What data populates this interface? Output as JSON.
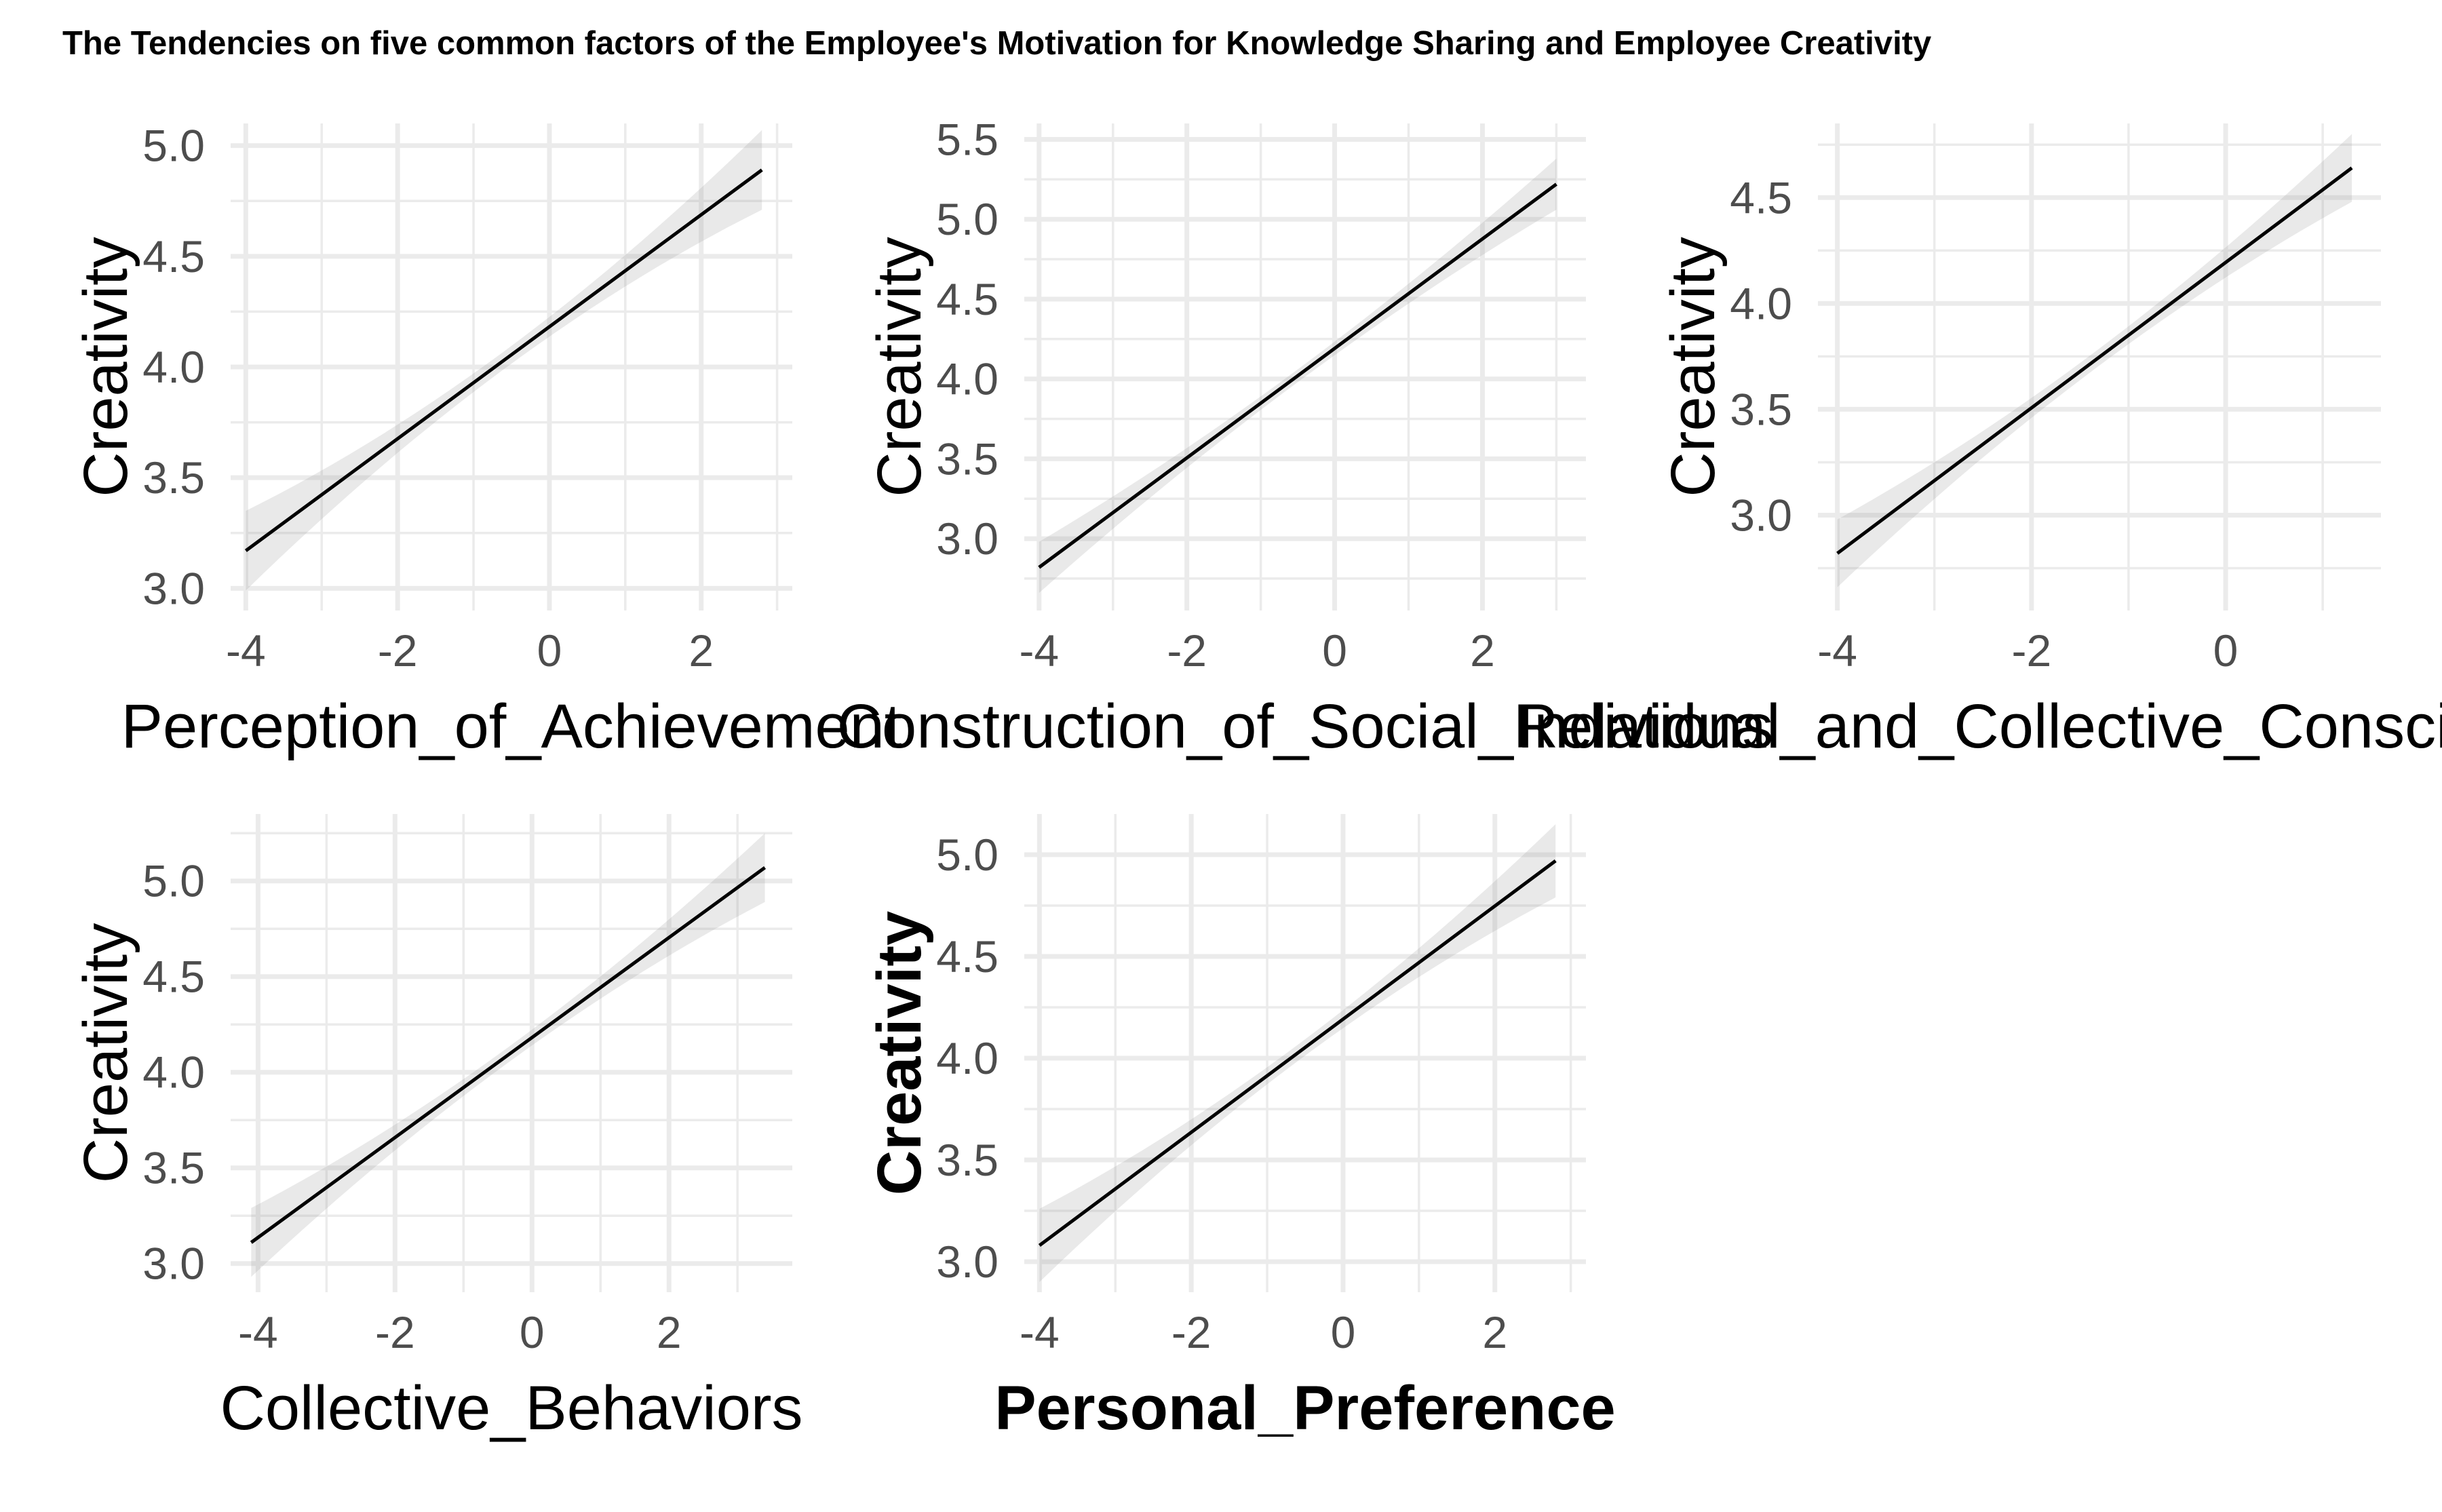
{
  "chart_data": {
    "title": "The Tendencies on five common factors of the Employee's Motivation for Knowledge Sharing and Employee Creativity",
    "panels": [
      {
        "type": "line",
        "xlabel": "Perception_of_Achievement",
        "ylabel": "Creativity",
        "xlim": [
          -4.2,
          3.2
        ],
        "ylim": [
          2.9,
          5.1
        ],
        "xticks": [
          -4,
          -2,
          0,
          2
        ],
        "yticks": [
          3.0,
          3.5,
          4.0,
          4.5,
          5.0
        ],
        "fit": {
          "x": [
            -4,
            2.8
          ],
          "y": [
            3.17,
            4.89
          ]
        },
        "ci_halfwidth": {
          "ends": 0.18,
          "center": 0.04
        },
        "bold_labels": false
      },
      {
        "type": "line",
        "xlabel": "Construction_of_Social_Relations",
        "ylabel": "Creativity",
        "xlim": [
          -4.2,
          3.4
        ],
        "ylim": [
          2.55,
          5.6
        ],
        "xticks": [
          -4,
          -2,
          0,
          2
        ],
        "yticks": [
          3.0,
          3.5,
          4.0,
          4.5,
          5.0,
          5.5
        ],
        "fit": {
          "x": [
            -4,
            3
          ],
          "y": [
            2.82,
            5.22
          ]
        },
        "ci_halfwidth": {
          "ends": 0.16,
          "center": 0.04
        },
        "bold_labels": false
      },
      {
        "type": "line",
        "xlabel": "Individual_and_Collective_Consciousness",
        "ylabel": "Creativity",
        "xlim": [
          -4.2,
          1.6
        ],
        "ylim": [
          2.55,
          4.85
        ],
        "xticks": [
          -4,
          -2,
          0
        ],
        "yticks": [
          3.0,
          3.5,
          4.0,
          4.5
        ],
        "fit": {
          "x": [
            -4,
            1.3
          ],
          "y": [
            2.82,
            4.64
          ]
        },
        "ci_halfwidth": {
          "ends": 0.16,
          "center": 0.04
        },
        "bold_labels": false
      },
      {
        "type": "line",
        "xlabel": "Collective_Behaviors",
        "ylabel": "Creativity",
        "xlim": [
          -4.4,
          3.8
        ],
        "ylim": [
          2.85,
          5.35
        ],
        "xticks": [
          -4,
          -2,
          0,
          2
        ],
        "yticks": [
          3.0,
          3.5,
          4.0,
          4.5,
          5.0
        ],
        "fit": {
          "x": [
            -4.1,
            3.4
          ],
          "y": [
            3.11,
            5.07
          ]
        },
        "ci_halfwidth": {
          "ends": 0.18,
          "center": 0.04
        },
        "bold_labels": false
      },
      {
        "type": "line",
        "xlabel": "Personal_Preference",
        "ylabel": "Creativity",
        "xlim": [
          -4.2,
          3.2
        ],
        "ylim": [
          2.85,
          5.2
        ],
        "xticks": [
          -4,
          -2,
          0,
          2
        ],
        "yticks": [
          3.0,
          3.5,
          4.0,
          4.5,
          5.0
        ],
        "fit": {
          "x": [
            -4,
            2.8
          ],
          "y": [
            3.08,
            4.97
          ]
        },
        "ci_halfwidth": {
          "ends": 0.18,
          "center": 0.04
        },
        "bold_labels": true
      }
    ]
  }
}
